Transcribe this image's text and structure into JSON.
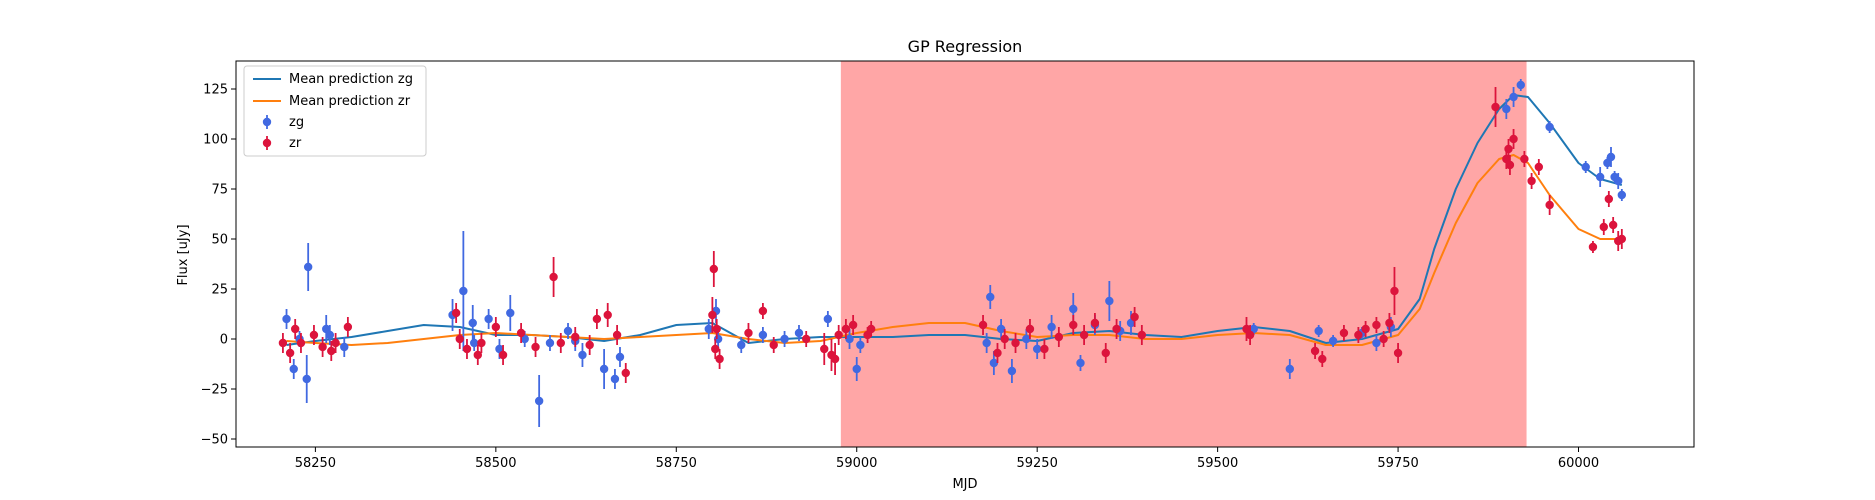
{
  "chart_data": {
    "type": "scatter",
    "title": "GP Regression",
    "xlabel": "MJD",
    "ylabel": "Flux [uJy]",
    "xlim": [
      58140,
      60160
    ],
    "ylim": [
      -54,
      139
    ],
    "xticks": [
      58250,
      58500,
      58750,
      59000,
      59250,
      59500,
      59750,
      60000
    ],
    "yticks": [
      -50,
      -25,
      0,
      25,
      50,
      75,
      100,
      125
    ],
    "grid": false,
    "legend_position": "top-left",
    "shaded_region": {
      "x_start": 58978,
      "x_end": 59928,
      "color": "#ffa6a6"
    },
    "lines": [
      {
        "name": "Mean prediction zg",
        "color": "#1f77b4",
        "x": [
          58210,
          58250,
          58300,
          58350,
          58400,
          58450,
          58500,
          58550,
          58600,
          58650,
          58700,
          58750,
          58800,
          58850,
          58900,
          58950,
          59000,
          59050,
          59100,
          59150,
          59200,
          59250,
          59300,
          59350,
          59400,
          59450,
          59500,
          59550,
          59600,
          59650,
          59700,
          59750,
          59780,
          59800,
          59830,
          59860,
          59890,
          59910,
          59930,
          59960,
          60000,
          60030,
          60060
        ],
        "y": [
          -3,
          -1,
          1,
          4,
          7,
          6,
          2,
          2,
          1,
          -1,
          2,
          7,
          8,
          -2,
          0,
          1,
          1,
          1,
          2,
          2,
          0,
          -1,
          3,
          4,
          2,
          1,
          4,
          6,
          4,
          -2,
          0,
          5,
          20,
          45,
          75,
          98,
          115,
          122,
          121,
          108,
          88,
          80,
          77
        ]
      },
      {
        "name": "Mean prediction zr",
        "color": "#ff7f0e",
        "x": [
          58210,
          58250,
          58300,
          58350,
          58400,
          58450,
          58500,
          58550,
          58600,
          58650,
          58700,
          58750,
          58800,
          58850,
          58900,
          58950,
          59000,
          59050,
          59100,
          59150,
          59200,
          59250,
          59300,
          59350,
          59400,
          59450,
          59500,
          59550,
          59600,
          59650,
          59700,
          59750,
          59780,
          59800,
          59830,
          59860,
          59890,
          59910,
          59930,
          59960,
          60000,
          60030,
          60060
        ],
        "y": [
          -1,
          -2,
          -3,
          -2,
          0,
          2,
          3,
          2,
          1,
          0,
          1,
          2,
          3,
          0,
          -2,
          -1,
          3,
          6,
          8,
          8,
          4,
          1,
          2,
          2,
          0,
          0,
          2,
          3,
          2,
          -3,
          -3,
          2,
          15,
          33,
          58,
          78,
          90,
          92,
          88,
          72,
          55,
          50,
          50
        ]
      }
    ],
    "series": [
      {
        "name": "zg",
        "color": "#4169e1",
        "x": [
          58210,
          58220,
          58228,
          58240,
          58238,
          58265,
          58270,
          58290,
          58440,
          58455,
          58468,
          58470,
          58490,
          58505,
          58520,
          58540,
          58560,
          58575,
          58600,
          58610,
          58620,
          58650,
          58665,
          58672,
          58795,
          58805,
          58808,
          58840,
          58870,
          58900,
          58920,
          58960,
          58990,
          59000,
          59005,
          59180,
          59185,
          59190,
          59200,
          59215,
          59235,
          59250,
          59270,
          59300,
          59310,
          59330,
          59350,
          59365,
          59380,
          59550,
          59600,
          59640,
          59660,
          59700,
          59720,
          59740,
          59900,
          59910,
          59920,
          59960,
          60010,
          60030,
          60040,
          60045,
          60050,
          60055,
          60060
        ],
        "y": [
          10,
          -15,
          0,
          36,
          -20,
          5,
          2,
          -4,
          12,
          24,
          8,
          -2,
          10,
          -5,
          13,
          0,
          -31,
          -2,
          4,
          -1,
          -8,
          -15,
          -20,
          -9,
          5,
          14,
          0,
          -3,
          2,
          0,
          3,
          10,
          0,
          -15,
          -3,
          -2,
          21,
          -12,
          5,
          -16,
          0,
          -5,
          6,
          15,
          -12,
          7,
          19,
          4,
          8,
          5,
          -15,
          4,
          -1,
          3,
          -2,
          6,
          115,
          121,
          127,
          106,
          86,
          81,
          88,
          91,
          81,
          79,
          72
        ],
        "err": [
          5,
          5,
          4,
          12,
          12,
          7,
          5,
          5,
          8,
          30,
          9,
          4,
          5,
          5,
          9,
          4,
          13,
          4,
          4,
          5,
          6,
          10,
          5,
          5,
          5,
          6,
          5,
          4,
          4,
          4,
          4,
          4,
          5,
          6,
          4,
          5,
          6,
          6,
          5,
          6,
          5,
          5,
          6,
          8,
          4,
          5,
          10,
          5,
          6,
          3,
          5,
          3,
          3,
          3,
          4,
          5,
          5,
          5,
          3,
          3,
          3,
          5,
          3,
          5,
          3,
          4,
          3
        ]
      },
      {
        "name": "zr",
        "color": "#dc143c",
        "x": [
          58205,
          58215,
          58222,
          58230,
          58248,
          58260,
          58272,
          58278,
          58295,
          58445,
          58450,
          58460,
          58475,
          58480,
          58500,
          58510,
          58535,
          58555,
          58580,
          58590,
          58610,
          58630,
          58640,
          58655,
          58668,
          58680,
          58800,
          58802,
          58804,
          58806,
          58810,
          58850,
          58870,
          58885,
          58930,
          58955,
          58965,
          58970,
          58975,
          58985,
          58995,
          59015,
          59020,
          59175,
          59195,
          59205,
          59220,
          59240,
          59260,
          59280,
          59300,
          59315,
          59330,
          59345,
          59360,
          59385,
          59395,
          59540,
          59545,
          59635,
          59645,
          59675,
          59695,
          59705,
          59720,
          59730,
          59738,
          59745,
          59750,
          59885,
          59900,
          59903,
          59905,
          59910,
          59925,
          59935,
          59945,
          59960,
          60020,
          60035,
          60042,
          60048,
          60055,
          60060
        ],
        "y": [
          -2,
          -7,
          5,
          -2,
          2,
          -4,
          -6,
          -2,
          6,
          13,
          0,
          -5,
          -8,
          -2,
          6,
          -8,
          3,
          -4,
          31,
          -2,
          1,
          -3,
          10,
          12,
          2,
          -17,
          12,
          35,
          -5,
          5,
          -10,
          3,
          14,
          -3,
          0,
          -5,
          -8,
          -10,
          2,
          5,
          7,
          2,
          5,
          7,
          -7,
          0,
          -2,
          5,
          -5,
          1,
          7,
          2,
          8,
          -7,
          5,
          11,
          2,
          5,
          2,
          -6,
          -10,
          3,
          2,
          5,
          7,
          0,
          8,
          24,
          -7,
          116,
          90,
          95,
          87,
          100,
          90,
          79,
          86,
          67,
          46,
          56,
          70,
          57,
          49,
          50
        ],
        "err": [
          5,
          5,
          5,
          5,
          5,
          5,
          5,
          5,
          5,
          5,
          5,
          5,
          5,
          5,
          5,
          5,
          5,
          5,
          10,
          5,
          5,
          5,
          5,
          6,
          5,
          5,
          9,
          9,
          5,
          5,
          5,
          5,
          4,
          4,
          4,
          8,
          8,
          8,
          5,
          5,
          5,
          4,
          4,
          5,
          5,
          5,
          5,
          5,
          5,
          5,
          5,
          5,
          5,
          5,
          5,
          5,
          5,
          6,
          5,
          4,
          4,
          4,
          4,
          4,
          4,
          4,
          5,
          12,
          5,
          10,
          5,
          5,
          5,
          5,
          4,
          4,
          4,
          5,
          3,
          4,
          4,
          4,
          5,
          5
        ]
      }
    ]
  }
}
